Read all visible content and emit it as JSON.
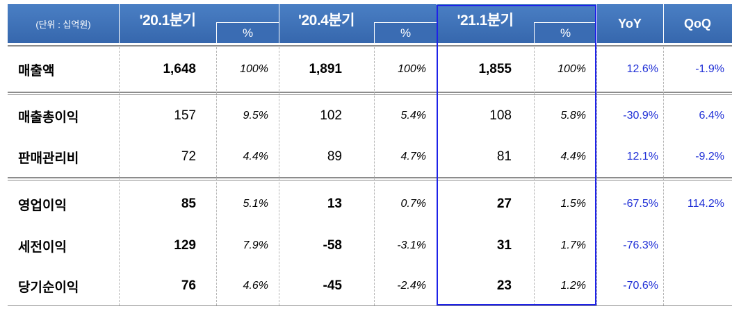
{
  "header": {
    "unit": "(단위 : 십억원)",
    "periods": [
      "'20.1분기",
      "'20.4분기",
      "'21.1분기"
    ],
    "pct": "%",
    "yoy": "YoY",
    "qoq": "QoQ"
  },
  "rows": [
    {
      "label": "매출액",
      "v1": "1,648",
      "p1": "100%",
      "v2": "1,891",
      "p2": "100%",
      "v3": "1,855",
      "p3": "100%",
      "yoy": "12.6%",
      "qoq": "-1.9%"
    },
    {
      "label": "매출총이익",
      "v1": "157",
      "p1": "9.5%",
      "v2": "102",
      "p2": "5.4%",
      "v3": "108",
      "p3": "5.8%",
      "yoy": "-30.9%",
      "qoq": "6.4%"
    },
    {
      "label": "판매관리비",
      "v1": "72",
      "p1": "4.4%",
      "v2": "89",
      "p2": "4.7%",
      "v3": "81",
      "p3": "4.4%",
      "yoy": "12.1%",
      "qoq": "-9.2%"
    },
    {
      "label": "영업이익",
      "v1": "85",
      "p1": "5.1%",
      "v2": "13",
      "p2": "0.7%",
      "v3": "27",
      "p3": "1.5%",
      "yoy": "-67.5%",
      "qoq": "114.2%"
    },
    {
      "label": "세전이익",
      "v1": "129",
      "p1": "7.9%",
      "v2": "-58",
      "p2": "-3.1%",
      "v3": "31",
      "p3": "1.7%",
      "yoy": "-76.3%",
      "qoq": ""
    },
    {
      "label": "당기순이익",
      "v1": "76",
      "p1": "4.6%",
      "v2": "-45",
      "p2": "-2.4%",
      "v3": "23",
      "p3": "1.2%",
      "yoy": "-70.6%",
      "qoq": ""
    }
  ]
}
